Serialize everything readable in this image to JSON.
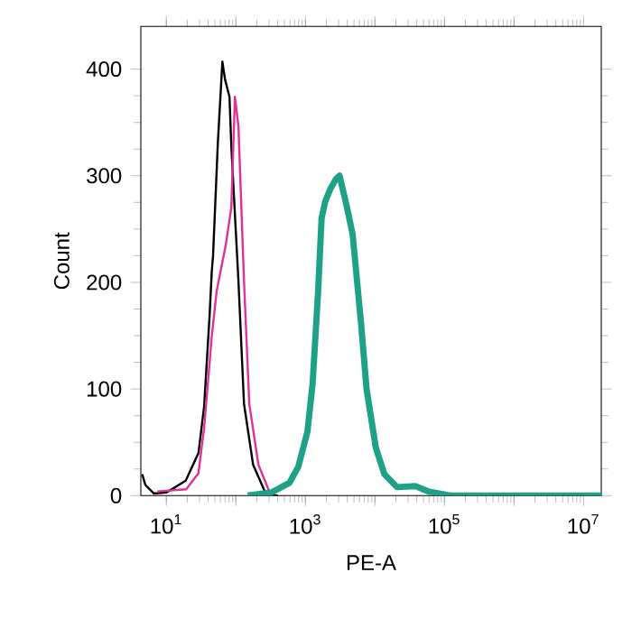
{
  "chart_data": {
    "type": "line",
    "xlabel": "PE-A",
    "ylabel": "Count",
    "log": "x",
    "grid": false,
    "marker": "none",
    "line_style": "solid",
    "xlim": [
      4.3,
      18000000
    ],
    "ylim": [
      0,
      440
    ],
    "xticks": [
      {
        "value": 10,
        "label": "10$^{1}$"
      },
      {
        "value": 100,
        "label": null
      },
      {
        "value": 1000,
        "label": "10$^{3}$"
      },
      {
        "value": 10000,
        "label": null
      },
      {
        "value": 100000,
        "label": "10$^{5}$"
      },
      {
        "value": 1000000,
        "label": null
      },
      {
        "value": 10000000,
        "label": "10$^{7}$"
      }
    ],
    "yticks": [
      0,
      100,
      200,
      300,
      400
    ],
    "series": [
      {
        "color": "#000000",
        "x": [
          4.5,
          5,
          6.6,
          10,
          13.5,
          19,
          29,
          35,
          42,
          45,
          47,
          55,
          64,
          70,
          81,
          86,
          109,
          131,
          177,
          269,
          400
        ],
        "values": [
          20,
          10,
          2,
          3,
          8,
          14,
          40,
          84,
          170,
          210,
          225,
          330,
          407,
          390,
          374,
          328,
          201,
          86,
          29,
          2,
          0
        ]
      },
      {
        "color": "#e0309a",
        "x": [
          7.4,
          19.3,
          29,
          35,
          45,
          53,
          72,
          86,
          97,
          109,
          131,
          156,
          211,
          320
        ],
        "values": [
          4,
          6,
          21,
          64,
          149,
          192,
          236,
          270,
          374,
          346,
          201,
          86,
          29,
          0
        ]
      },
      {
        "color": "#1fa187",
        "x": [
          148,
          326,
          590,
          790,
          1070,
          1270,
          1520,
          1710,
          1930,
          2300,
          2760,
          3100,
          3980,
          4780,
          6350,
          7580,
          10300,
          13700,
          20800,
          38000,
          58000,
          126000,
          18000000
        ],
        "values": [
          0,
          3,
          12,
          27,
          60,
          105,
          190,
          260,
          276,
          288,
          297,
          300,
          270,
          245,
          160,
          100,
          45,
          20,
          8,
          9,
          4,
          0,
          0
        ]
      }
    ]
  }
}
